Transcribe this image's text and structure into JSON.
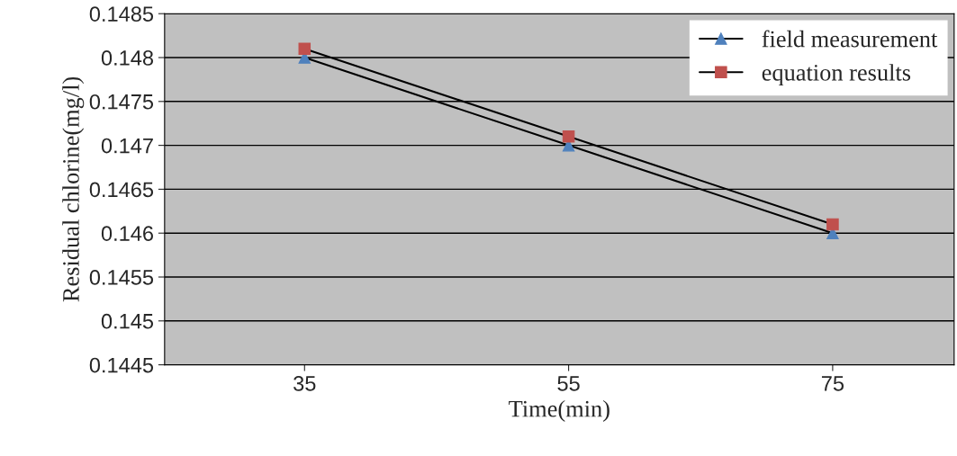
{
  "chart_data": {
    "type": "line",
    "xlabel": "Time(min)",
    "ylabel": "Residual chlorine(mg/l)",
    "categories": [
      "35",
      "55",
      "75"
    ],
    "series": [
      {
        "name": "field measurement",
        "color": "#4f81bd",
        "marker": "triangle",
        "values": [
          0.148,
          0.147,
          0.146
        ]
      },
      {
        "name": "equation results",
        "color": "#c0504d",
        "marker": "square",
        "values": [
          0.1481,
          0.1471,
          0.1461
        ]
      }
    ],
    "ylim": [
      0.1445,
      0.1485
    ],
    "yticks": [
      0.1445,
      0.145,
      0.1455,
      0.146,
      0.1465,
      0.147,
      0.1475,
      0.148,
      0.1485
    ],
    "grid": "y",
    "legend": "top right",
    "line_style": "solid"
  }
}
